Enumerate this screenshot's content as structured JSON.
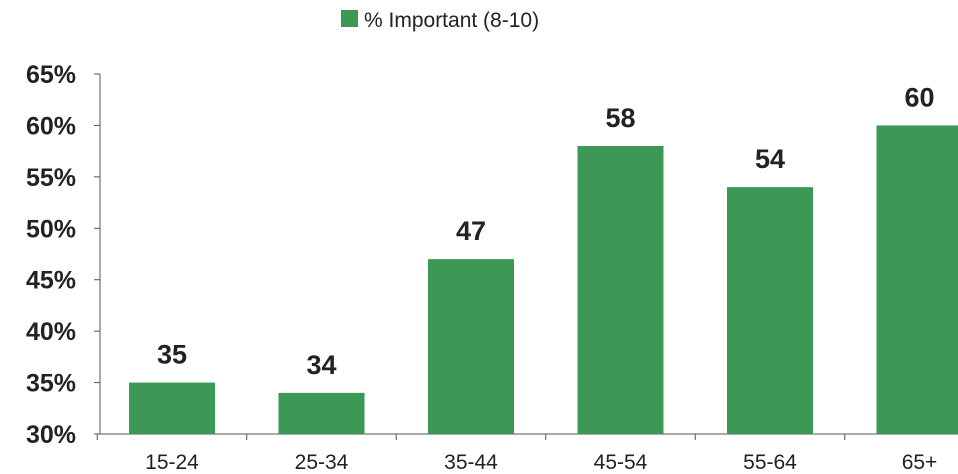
{
  "chart_data": {
    "type": "bar",
    "categories": [
      "15-24",
      "25-34",
      "35-44",
      "45-54",
      "55-64",
      "65+"
    ],
    "series": [
      {
        "name": "% Important (8-10)",
        "values": [
          35,
          34,
          47,
          58,
          54,
          60
        ],
        "data_labels": [
          "35",
          "34",
          "47",
          "58",
          "54",
          "60"
        ],
        "color": "#3c9855"
      }
    ],
    "yticks": [
      30,
      35,
      40,
      45,
      50,
      55,
      60,
      65
    ],
    "ytick_labels": [
      "30%",
      "35%",
      "40%",
      "45%",
      "50%",
      "55%",
      "60%",
      "65%"
    ],
    "ylim": [
      30,
      65
    ],
    "title": "",
    "xlabel": "",
    "ylabel": "",
    "legend": "top-center",
    "grid": false
  }
}
